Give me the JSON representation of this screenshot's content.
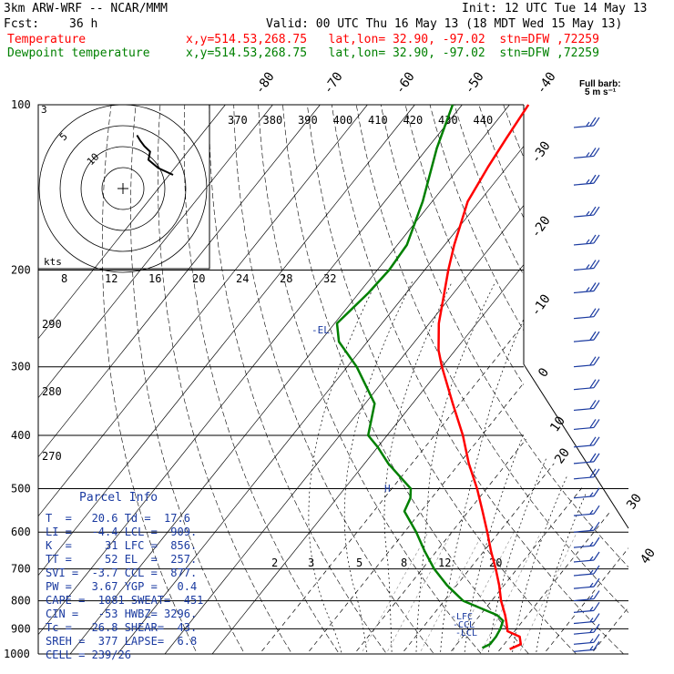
{
  "header": {
    "model": "3km ARW-WRF -- NCAR/MMM",
    "init": "Init: 12 UTC Tue 14 May 13",
    "fcst_label": "Fcst:",
    "fcst_value": "36 h",
    "valid": "Valid: 00 UTC Thu 16 May 13 (18 MDT Wed 15 May 13)",
    "temp_label": "Temperature",
    "temp_loc": "x,y=514.53,268.75   lat,lon= 32.90, -97.02  stn=DFW ,72259",
    "dew_label": "Dewpoint temperature",
    "dew_loc": "x,y=514.53,268.75   lat,lon= 32.90, -97.02  stn=DFW ,72259"
  },
  "barb_legend": [
    "Full barb:",
    "5 m s⁻¹"
  ],
  "colors": {
    "temperature": "#ff0000",
    "dewpoint": "#008000",
    "labels": "#1a3aa0"
  },
  "parcel_info": {
    "title": "Parcel Info",
    "rows": [
      "T  =   20.6 Td =  17.6",
      "LI =   -4.4 LCL =  909.",
      "K  =     31 LFC =  856.",
      "TT =     52 EL  =  257.",
      "SVI =  -3.7 CCL =  877.",
      "PW =   3.67 YGP =   0.4",
      "CAPE =  1081 SWEAT=  451",
      "CIN =   -53 HWBZ= 3296.",
      "Tc =   26.8 SHEAR=  43.",
      "SREH =  377 LAPSE=  6.8",
      "CELL = 239/26"
    ]
  },
  "chart_data": {
    "type": "line",
    "subtype": "skew-T log-P",
    "ylabel": "",
    "y_axis": "pressure (hPa), log scale, reversed",
    "pressure_levels": [
      100,
      200,
      300,
      400,
      500,
      600,
      700,
      800,
      900,
      1000
    ],
    "pressure_tick_labels": [
      "100",
      "200",
      "300",
      "400",
      "500",
      "600",
      "700",
      "800",
      "900",
      "1000"
    ],
    "isotherm_labels_top": [
      "-80",
      "-70",
      "-60",
      "-50",
      "-40"
    ],
    "isotherm_labels_right": [
      "-30",
      "-20",
      "-10",
      "0",
      "10",
      "20",
      "30",
      "40"
    ],
    "theta_labels": [
      "370",
      "380",
      "390",
      "400",
      "410",
      "420",
      "430",
      "440"
    ],
    "mixing_ratio_labels": [
      "2",
      "3",
      "5",
      "8",
      "12",
      "20"
    ],
    "hodograph": {
      "unit_label": "kts",
      "ring_labels": [
        "5",
        "10"
      ],
      "speed_labels": [
        "8",
        "12",
        "16",
        "20",
        "24",
        "28",
        "32"
      ],
      "ring_values": [
        10,
        20,
        30,
        40
      ],
      "trace": [
        [
          0,
          0
        ],
        [
          -18,
          10
        ],
        [
          -30,
          22
        ],
        [
          -28,
          34
        ],
        [
          -35,
          42
        ],
        [
          -40,
          50
        ],
        [
          -44,
          58
        ]
      ]
    },
    "left_theta_labels": [
      "290",
      "280",
      "270"
    ],
    "annotations": [
      "EL",
      "LFC",
      "CCL",
      "LCL"
    ],
    "series": [
      {
        "name": "Temperature",
        "color": "#ff0000",
        "points": [
          [
            980,
            22.0
          ],
          [
            960,
            23.5
          ],
          [
            930,
            22.0
          ],
          [
            909,
            18.5
          ],
          [
            880,
            17.0
          ],
          [
            850,
            15.3
          ],
          [
            800,
            12.0
          ],
          [
            750,
            9.0
          ],
          [
            700,
            5.5
          ],
          [
            650,
            1.5
          ],
          [
            600,
            -2.5
          ],
          [
            550,
            -7.0
          ],
          [
            500,
            -12.0
          ],
          [
            450,
            -18.0
          ],
          [
            400,
            -24.0
          ],
          [
            350,
            -31.5
          ],
          [
            300,
            -40.0
          ],
          [
            280,
            -43.5
          ],
          [
            250,
            -48.0
          ],
          [
            220,
            -52.0
          ],
          [
            200,
            -55.0
          ],
          [
            180,
            -58.0
          ],
          [
            150,
            -62.5
          ],
          [
            130,
            -64.0
          ],
          [
            115,
            -65.0
          ],
          [
            100,
            -66.0
          ]
        ]
      },
      {
        "name": "Dewpoint temperature",
        "color": "#008000",
        "points": [
          [
            975,
            16.0
          ],
          [
            960,
            17.0
          ],
          [
            930,
            17.0
          ],
          [
            900,
            16.6
          ],
          [
            870,
            15.8
          ],
          [
            850,
            13.6
          ],
          [
            800,
            4.0
          ],
          [
            750,
            -2.0
          ],
          [
            700,
            -7.5
          ],
          [
            650,
            -12.5
          ],
          [
            600,
            -17.5
          ],
          [
            550,
            -23.5
          ],
          [
            520,
            -24.5
          ],
          [
            500,
            -26.0
          ],
          [
            450,
            -35.0
          ],
          [
            420,
            -40.0
          ],
          [
            400,
            -44.0
          ],
          [
            350,
            -48.0
          ],
          [
            300,
            -58.0
          ],
          [
            270,
            -66.0
          ],
          [
            250,
            -69.5
          ],
          [
            220,
            -68.0
          ],
          [
            200,
            -67.5
          ],
          [
            180,
            -68.0
          ],
          [
            150,
            -72.0
          ],
          [
            120,
            -78.0
          ],
          [
            100,
            -82.0
          ]
        ]
      }
    ],
    "wind_barbs": [
      {
        "p": 110,
        "speed": 25,
        "dir": 260
      },
      {
        "p": 125,
        "speed": 25,
        "dir": 260
      },
      {
        "p": 140,
        "speed": 25,
        "dir": 255
      },
      {
        "p": 160,
        "speed": 25,
        "dir": 255
      },
      {
        "p": 180,
        "speed": 25,
        "dir": 250
      },
      {
        "p": 200,
        "speed": 25,
        "dir": 250
      },
      {
        "p": 220,
        "speed": 25,
        "dir": 250
      },
      {
        "p": 245,
        "speed": 20,
        "dir": 250
      },
      {
        "p": 270,
        "speed": 20,
        "dir": 245
      },
      {
        "p": 300,
        "speed": 20,
        "dir": 245
      },
      {
        "p": 330,
        "speed": 20,
        "dir": 240
      },
      {
        "p": 360,
        "speed": 20,
        "dir": 240
      },
      {
        "p": 390,
        "speed": 20,
        "dir": 240
      },
      {
        "p": 420,
        "speed": 20,
        "dir": 235
      },
      {
        "p": 450,
        "speed": 20,
        "dir": 235
      },
      {
        "p": 480,
        "speed": 20,
        "dir": 235
      },
      {
        "p": 520,
        "speed": 15,
        "dir": 235
      },
      {
        "p": 560,
        "speed": 15,
        "dir": 230
      },
      {
        "p": 600,
        "speed": 15,
        "dir": 230
      },
      {
        "p": 640,
        "speed": 15,
        "dir": 230
      },
      {
        "p": 680,
        "speed": 15,
        "dir": 225
      },
      {
        "p": 720,
        "speed": 15,
        "dir": 220
      },
      {
        "p": 760,
        "speed": 15,
        "dir": 215
      },
      {
        "p": 800,
        "speed": 15,
        "dir": 210
      },
      {
        "p": 840,
        "speed": 15,
        "dir": 200
      },
      {
        "p": 880,
        "speed": 15,
        "dir": 190
      },
      {
        "p": 920,
        "speed": 15,
        "dir": 180
      },
      {
        "p": 960,
        "speed": 15,
        "dir": 175
      },
      {
        "p": 990,
        "speed": 15,
        "dir": 170
      }
    ]
  }
}
